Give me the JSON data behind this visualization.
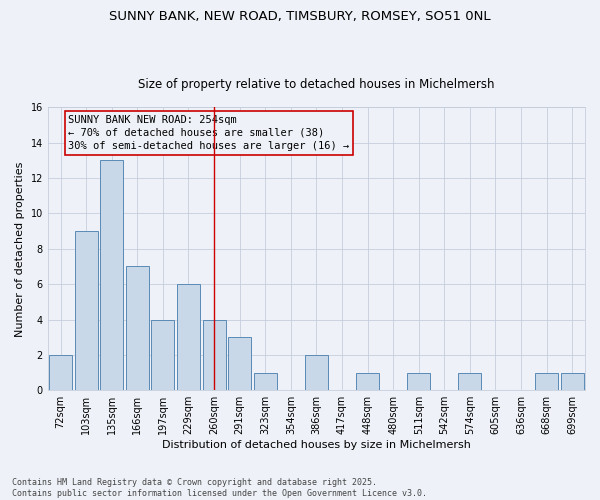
{
  "title1": "SUNNY BANK, NEW ROAD, TIMSBURY, ROMSEY, SO51 0NL",
  "title2": "Size of property relative to detached houses in Michelmersh",
  "xlabel": "Distribution of detached houses by size in Michelmersh",
  "ylabel": "Number of detached properties",
  "categories": [
    "72sqm",
    "103sqm",
    "135sqm",
    "166sqm",
    "197sqm",
    "229sqm",
    "260sqm",
    "291sqm",
    "323sqm",
    "354sqm",
    "386sqm",
    "417sqm",
    "448sqm",
    "480sqm",
    "511sqm",
    "542sqm",
    "574sqm",
    "605sqm",
    "636sqm",
    "668sqm",
    "699sqm"
  ],
  "values": [
    2,
    9,
    13,
    7,
    4,
    6,
    4,
    3,
    1,
    0,
    2,
    0,
    1,
    0,
    1,
    0,
    1,
    0,
    0,
    1,
    1
  ],
  "bar_color": "#c8d8e8",
  "bar_edge_color": "#5a8ab5",
  "vline_x": 6,
  "vline_color": "#cc0000",
  "annotation_text": "SUNNY BANK NEW ROAD: 254sqm\n← 70% of detached houses are smaller (38)\n30% of semi-detached houses are larger (16) →",
  "annotation_box_color": "#cc0000",
  "ylim": [
    0,
    16
  ],
  "yticks": [
    0,
    2,
    4,
    6,
    8,
    10,
    12,
    14,
    16
  ],
  "footer": "Contains HM Land Registry data © Crown copyright and database right 2025.\nContains public sector information licensed under the Open Government Licence v3.0.",
  "background_color": "#eef2f8",
  "grid_color": "#c5cfdc",
  "title_fontsize": 9.5,
  "subtitle_fontsize": 8.5,
  "axis_label_fontsize": 8,
  "tick_fontsize": 7,
  "annotation_fontsize": 7.5,
  "footer_fontsize": 6
}
